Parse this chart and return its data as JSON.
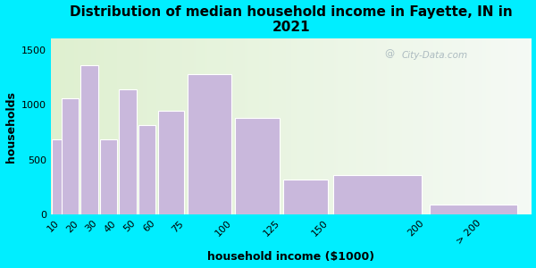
{
  "title": "Distribution of median household income in Fayette, IN in\n2021",
  "xlabel": "household income ($1000)",
  "ylabel": "households",
  "categories": [
    "10",
    "20",
    "30",
    "40",
    "50",
    "60",
    "75",
    "100",
    "125",
    "150",
    "200",
    "> 200"
  ],
  "bar_lefts": [
    5,
    10,
    20,
    30,
    40,
    50,
    60,
    75,
    100,
    125,
    150,
    200
  ],
  "bar_widths": [
    10,
    10,
    10,
    10,
    10,
    10,
    15,
    25,
    25,
    25,
    50,
    50
  ],
  "values": [
    680,
    1055,
    1355,
    680,
    1140,
    810,
    945,
    1280,
    880,
    320,
    360,
    90
  ],
  "bar_color": "#c9b8dc",
  "bar_edge_color": "#ffffff",
  "background_outer": "#00eeff",
  "ylim": [
    0,
    1600
  ],
  "yticks": [
    0,
    500,
    1000,
    1500
  ],
  "xlim": [
    5,
    255
  ],
  "title_fontsize": 11,
  "axis_label_fontsize": 9,
  "tick_fontsize": 8,
  "watermark_text": "City-Data.com",
  "tick_positions": [
    10,
    20,
    30,
    40,
    50,
    60,
    75,
    100,
    125,
    150,
    200,
    230
  ],
  "tick_labels": [
    "10",
    "20",
    "30",
    "40",
    "50",
    "60",
    "75",
    "100",
    "125",
    "150",
    "200",
    "> 200"
  ]
}
